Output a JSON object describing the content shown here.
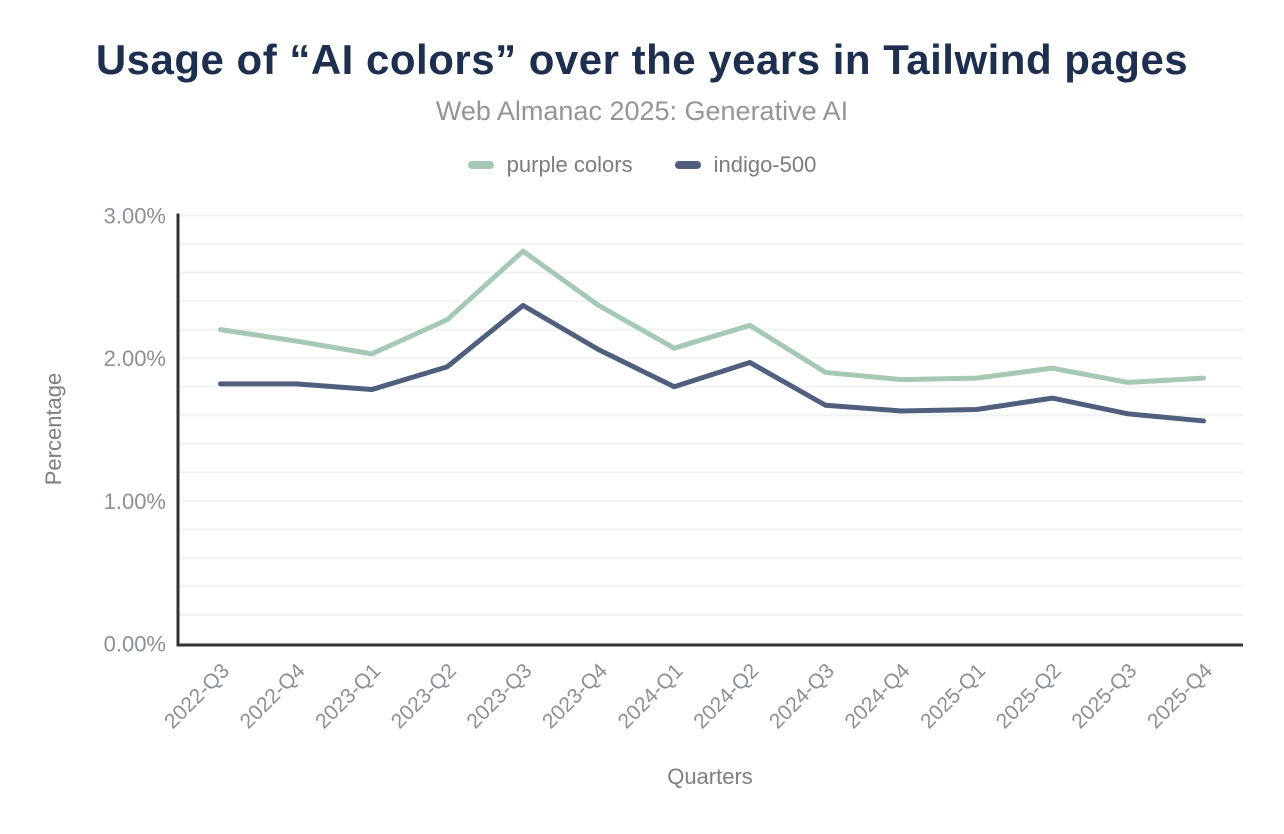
{
  "header": {
    "title": "Usage of “AI colors” over the years in Tailwind pages",
    "subtitle": "Web Almanac 2025: Generative AI"
  },
  "chart_data": {
    "type": "line",
    "title": "Usage of “AI colors” over the years in Tailwind pages",
    "subtitle": "Web Almanac 2025: Generative AI",
    "xlabel": "Quarters",
    "ylabel": "Percentage",
    "categories": [
      "2022-Q3",
      "2022-Q4",
      "2023-Q1",
      "2023-Q2",
      "2023-Q3",
      "2023-Q4",
      "2024-Q1",
      "2024-Q2",
      "2024-Q3",
      "2024-Q4",
      "2025-Q1",
      "2025-Q2",
      "2025-Q3",
      "2025-Q4"
    ],
    "series": [
      {
        "name": "purple colors",
        "color": "#a5c9b5",
        "values": [
          2.2,
          2.12,
          2.03,
          2.27,
          2.75,
          2.37,
          2.07,
          2.23,
          1.9,
          1.85,
          1.86,
          1.93,
          1.83,
          1.86
        ]
      },
      {
        "name": "indigo-500",
        "color": "#4f5f7d",
        "values": [
          1.82,
          1.82,
          1.78,
          1.94,
          2.37,
          2.06,
          1.8,
          1.97,
          1.67,
          1.63,
          1.64,
          1.72,
          1.61,
          1.56
        ]
      }
    ],
    "ylim": [
      0,
      3
    ],
    "y_tick_step": 1,
    "y_tick_format": "0.00%",
    "y_tick_labels": [
      "0.00%",
      "1.00%",
      "2.00%",
      "3.00%"
    ],
    "grid_step": 0.2,
    "grid_on": true,
    "legend_position": "top",
    "styles": {
      "grid_color": "#f2f2f2",
      "axis_color": "#333333",
      "line_width": 5
    }
  }
}
